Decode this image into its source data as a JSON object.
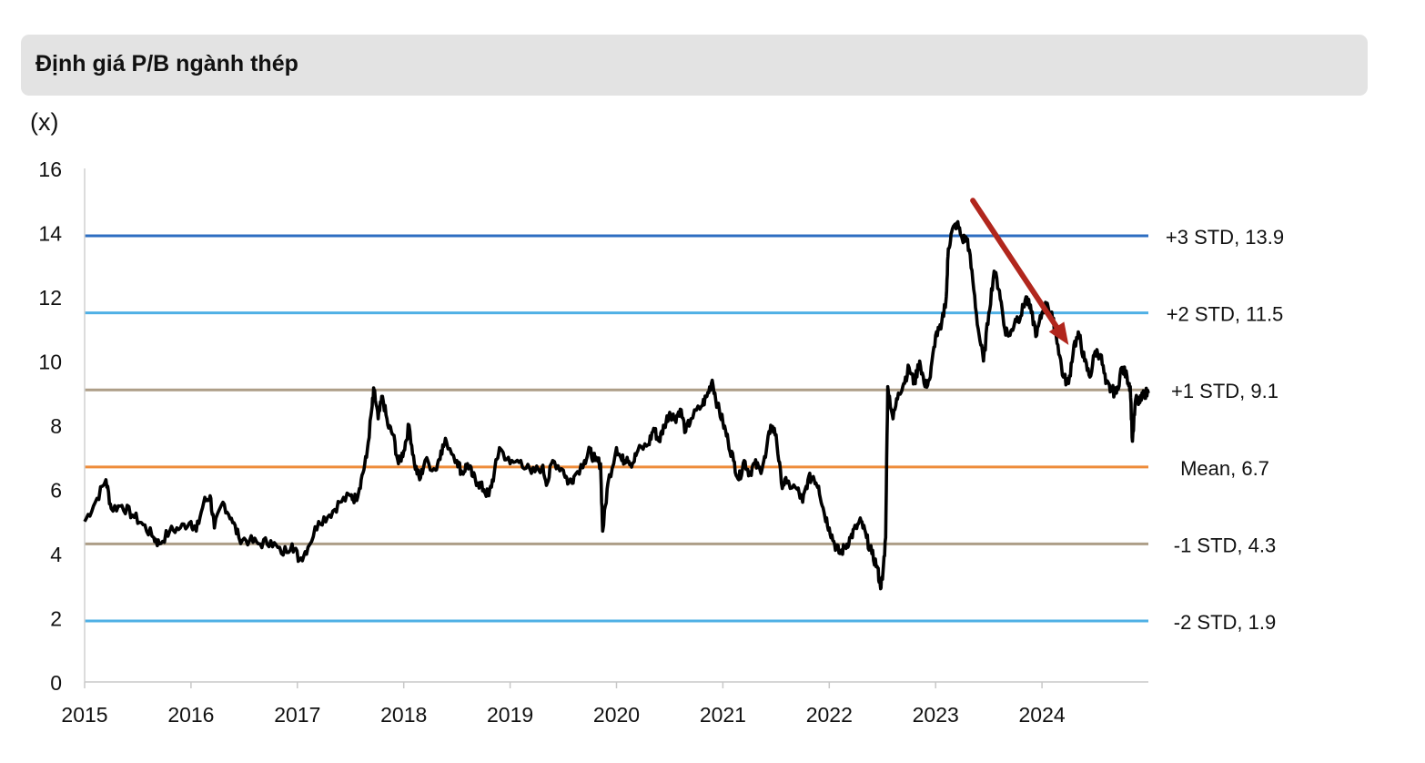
{
  "title": "Định giá P/B ngành thép",
  "chart_data": {
    "type": "line",
    "title": "Định giá P/B ngành thép",
    "ylabel": "(x)",
    "xlabel": "",
    "ylim": [
      0,
      16
    ],
    "xlim": [
      2015,
      2025
    ],
    "y_ticks": [
      "0",
      "2",
      "4",
      "6",
      "8",
      "10",
      "12",
      "14",
      "16"
    ],
    "x_ticks": [
      "2015",
      "2016",
      "2017",
      "2018",
      "2019",
      "2020",
      "2021",
      "2022",
      "2023",
      "2024"
    ],
    "grid": false,
    "reference_lines": [
      {
        "label": "+3 STD, 13.9",
        "value": 13.9,
        "color": "#2d6ec2"
      },
      {
        "label": "+2 STD, 11.5",
        "value": 11.5,
        "color": "#4fb0e5"
      },
      {
        "label": "+1 STD, 9.1",
        "value": 9.1,
        "color": "#ad9e87"
      },
      {
        "label": "Mean, 6.7",
        "value": 6.7,
        "color": "#ee8c3a"
      },
      {
        "label": "-1 STD, 4.3",
        "value": 4.3,
        "color": "#ad9e87"
      },
      {
        "label": "-2 STD, 1.9",
        "value": 1.9,
        "color": "#4fb0e5"
      }
    ],
    "series": [
      {
        "name": "P/B",
        "color": "#000000",
        "points": [
          [
            2015.0,
            5.0
          ],
          [
            2015.1,
            5.6
          ],
          [
            2015.2,
            6.3
          ],
          [
            2015.25,
            5.4
          ],
          [
            2015.35,
            5.5
          ],
          [
            2015.45,
            5.2
          ],
          [
            2015.55,
            4.9
          ],
          [
            2015.65,
            4.5
          ],
          [
            2015.7,
            4.3
          ],
          [
            2015.8,
            4.7
          ],
          [
            2015.9,
            4.8
          ],
          [
            2016.0,
            5.0
          ],
          [
            2016.05,
            4.7
          ],
          [
            2016.12,
            5.6
          ],
          [
            2016.18,
            5.8
          ],
          [
            2016.22,
            4.8
          ],
          [
            2016.3,
            5.6
          ],
          [
            2016.38,
            5.1
          ],
          [
            2016.45,
            4.5
          ],
          [
            2016.55,
            4.4
          ],
          [
            2016.65,
            4.3
          ],
          [
            2016.75,
            4.4
          ],
          [
            2016.85,
            4.0
          ],
          [
            2016.95,
            4.3
          ],
          [
            2017.02,
            3.8
          ],
          [
            2017.1,
            4.2
          ],
          [
            2017.2,
            5.0
          ],
          [
            2017.3,
            5.2
          ],
          [
            2017.4,
            5.6
          ],
          [
            2017.5,
            5.8
          ],
          [
            2017.55,
            5.7
          ],
          [
            2017.6,
            6.3
          ],
          [
            2017.65,
            7.0
          ],
          [
            2017.7,
            8.5
          ],
          [
            2017.72,
            9.1
          ],
          [
            2017.76,
            8.2
          ],
          [
            2017.8,
            8.9
          ],
          [
            2017.85,
            8.0
          ],
          [
            2017.9,
            7.7
          ],
          [
            2017.95,
            6.8
          ],
          [
            2018.0,
            7.2
          ],
          [
            2018.05,
            8.0
          ],
          [
            2018.1,
            6.8
          ],
          [
            2018.15,
            6.3
          ],
          [
            2018.2,
            6.9
          ],
          [
            2018.3,
            6.6
          ],
          [
            2018.35,
            7.2
          ],
          [
            2018.4,
            7.5
          ],
          [
            2018.5,
            6.9
          ],
          [
            2018.55,
            6.5
          ],
          [
            2018.6,
            6.8
          ],
          [
            2018.65,
            6.4
          ],
          [
            2018.7,
            6.2
          ],
          [
            2018.75,
            6.0
          ],
          [
            2018.8,
            5.8
          ],
          [
            2018.85,
            6.5
          ],
          [
            2018.9,
            7.3
          ],
          [
            2019.0,
            6.8
          ],
          [
            2019.1,
            6.9
          ],
          [
            2019.2,
            6.5
          ],
          [
            2019.3,
            6.7
          ],
          [
            2019.35,
            6.2
          ],
          [
            2019.4,
            6.9
          ],
          [
            2019.5,
            6.6
          ],
          [
            2019.55,
            6.2
          ],
          [
            2019.6,
            6.4
          ],
          [
            2019.7,
            6.9
          ],
          [
            2019.75,
            7.2
          ],
          [
            2019.8,
            6.9
          ],
          [
            2019.85,
            6.8
          ],
          [
            2019.87,
            4.7
          ],
          [
            2019.92,
            6.2
          ],
          [
            2020.0,
            7.3
          ],
          [
            2020.05,
            6.9
          ],
          [
            2020.1,
            7.0
          ],
          [
            2020.15,
            6.8
          ],
          [
            2020.2,
            7.2
          ],
          [
            2020.3,
            7.4
          ],
          [
            2020.35,
            7.9
          ],
          [
            2020.4,
            7.5
          ],
          [
            2020.45,
            8.0
          ],
          [
            2020.5,
            8.4
          ],
          [
            2020.55,
            8.2
          ],
          [
            2020.6,
            8.5
          ],
          [
            2020.65,
            7.8
          ],
          [
            2020.7,
            8.2
          ],
          [
            2020.8,
            8.6
          ],
          [
            2020.85,
            8.9
          ],
          [
            2020.9,
            9.4
          ],
          [
            2020.95,
            8.6
          ],
          [
            2021.0,
            8.1
          ],
          [
            2021.05,
            7.5
          ],
          [
            2021.1,
            6.9
          ],
          [
            2021.15,
            6.3
          ],
          [
            2021.2,
            6.9
          ],
          [
            2021.25,
            6.5
          ],
          [
            2021.3,
            6.8
          ],
          [
            2021.35,
            6.6
          ],
          [
            2021.4,
            7.0
          ],
          [
            2021.45,
            8.0
          ],
          [
            2021.5,
            7.7
          ],
          [
            2021.55,
            6.2
          ],
          [
            2021.6,
            6.2
          ],
          [
            2021.7,
            6.0
          ],
          [
            2021.75,
            5.6
          ],
          [
            2021.8,
            6.3
          ],
          [
            2021.85,
            6.4
          ],
          [
            2021.9,
            6.1
          ],
          [
            2021.95,
            5.3
          ],
          [
            2022.0,
            4.8
          ],
          [
            2022.05,
            4.3
          ],
          [
            2022.1,
            4.0
          ],
          [
            2022.15,
            4.2
          ],
          [
            2022.2,
            4.5
          ],
          [
            2022.25,
            4.8
          ],
          [
            2022.3,
            5.0
          ],
          [
            2022.35,
            4.5
          ],
          [
            2022.4,
            4.0
          ],
          [
            2022.45,
            3.6
          ],
          [
            2022.48,
            3.0
          ],
          [
            2022.5,
            3.2
          ],
          [
            2022.53,
            4.5
          ],
          [
            2022.55,
            9.2
          ],
          [
            2022.6,
            8.2
          ],
          [
            2022.65,
            9.0
          ],
          [
            2022.7,
            9.3
          ],
          [
            2022.75,
            9.8
          ],
          [
            2022.8,
            9.3
          ],
          [
            2022.85,
            10.0
          ],
          [
            2022.9,
            9.2
          ],
          [
            2022.95,
            9.5
          ],
          [
            2023.0,
            10.8
          ],
          [
            2023.05,
            11.0
          ],
          [
            2023.1,
            12.0
          ],
          [
            2023.12,
            13.5
          ],
          [
            2023.15,
            14.0
          ],
          [
            2023.2,
            14.3
          ],
          [
            2023.25,
            13.8
          ],
          [
            2023.3,
            13.8
          ],
          [
            2023.35,
            12.5
          ],
          [
            2023.4,
            11.0
          ],
          [
            2023.45,
            10.0
          ],
          [
            2023.5,
            11.5
          ],
          [
            2023.55,
            12.8
          ],
          [
            2023.6,
            12.2
          ],
          [
            2023.65,
            11.0
          ],
          [
            2023.7,
            10.8
          ],
          [
            2023.75,
            11.3
          ],
          [
            2023.8,
            11.4
          ],
          [
            2023.85,
            12.0
          ],
          [
            2023.9,
            11.5
          ],
          [
            2023.95,
            10.8
          ],
          [
            2024.0,
            11.5
          ],
          [
            2024.05,
            11.8
          ],
          [
            2024.1,
            11.3
          ],
          [
            2024.15,
            10.5
          ],
          [
            2024.2,
            9.5
          ],
          [
            2024.25,
            9.3
          ],
          [
            2024.3,
            10.5
          ],
          [
            2024.35,
            10.8
          ],
          [
            2024.4,
            10.0
          ],
          [
            2024.45,
            9.5
          ],
          [
            2024.5,
            10.3
          ],
          [
            2024.55,
            10.2
          ],
          [
            2024.6,
            9.3
          ],
          [
            2024.65,
            9.1
          ],
          [
            2024.7,
            9.0
          ],
          [
            2024.75,
            9.8
          ],
          [
            2024.8,
            9.5
          ],
          [
            2024.83,
            9.2
          ],
          [
            2024.85,
            7.5
          ],
          [
            2024.88,
            8.8
          ],
          [
            2024.92,
            8.7
          ],
          [
            2024.96,
            9.0
          ],
          [
            2025.0,
            9.0
          ]
        ]
      }
    ],
    "annotations": [
      {
        "type": "arrow",
        "color": "#b1261d",
        "from": [
          2023.35,
          15.0
        ],
        "to": [
          2024.25,
          10.5
        ],
        "meaning": "downtrend"
      }
    ]
  }
}
